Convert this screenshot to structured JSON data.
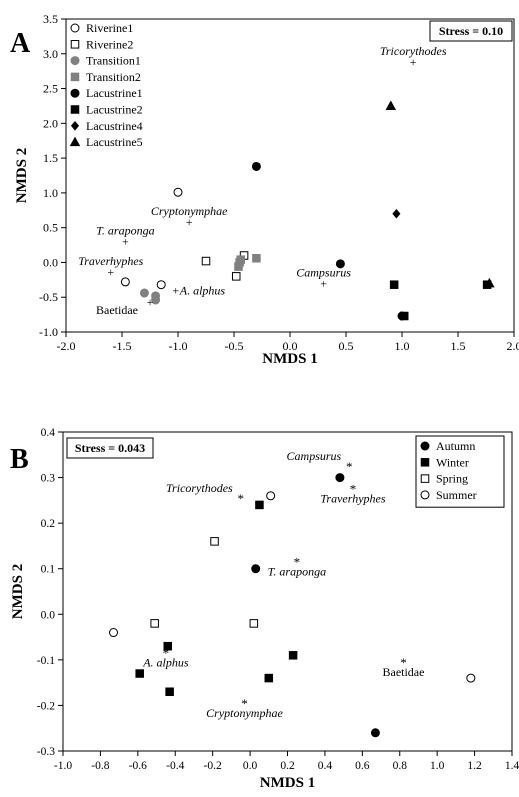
{
  "chart_data": [
    {
      "type": "scatter",
      "panel_label": "A",
      "xlabel": "NMDS 1",
      "ylabel": "NMDS 2",
      "xlim": [
        -2.0,
        2.0
      ],
      "ylim": [
        -1.0,
        3.5
      ],
      "xticks": [
        "-2.0",
        "-1.5",
        "-1.0",
        "-0.5",
        "0.0",
        "0.5",
        "1.0",
        "1.5",
        "2.0"
      ],
      "yticks": [
        "-1.0",
        "-0.5",
        "0.0",
        "0.5",
        "1.0",
        "1.5",
        "2.0",
        "2.5",
        "3.0",
        "3.5"
      ],
      "grid": false,
      "legend_position": "top-left",
      "stress_label": "Stress = 0.10",
      "series": [
        {
          "name": "Riverine1",
          "marker": "circle-open",
          "color": "#000000",
          "points": [
            [
              -1.47,
              -0.28
            ],
            [
              -1.15,
              -0.32
            ],
            [
              -1.0,
              1.01
            ]
          ]
        },
        {
          "name": "Riverine2",
          "marker": "square-open",
          "color": "#000000",
          "points": [
            [
              -0.75,
              0.02
            ],
            [
              -0.48,
              -0.2
            ],
            [
              -0.41,
              0.1
            ]
          ]
        },
        {
          "name": "Transition1",
          "marker": "circle",
          "color": "#808080",
          "points": [
            [
              -1.3,
              -0.44
            ],
            [
              -1.2,
              -0.48
            ],
            [
              -1.2,
              -0.54
            ]
          ]
        },
        {
          "name": "Transition2",
          "marker": "square",
          "color": "#808080",
          "points": [
            [
              -0.46,
              -0.06
            ],
            [
              -0.45,
              0.0
            ],
            [
              -0.44,
              0.04
            ],
            [
              -0.3,
              0.06
            ]
          ]
        },
        {
          "name": "Lacustrine1",
          "marker": "circle",
          "color": "#000000",
          "points": [
            [
              -0.3,
              1.38
            ],
            [
              0.45,
              -0.02
            ],
            [
              1.0,
              -0.77
            ]
          ]
        },
        {
          "name": "Lacustrine2",
          "marker": "square",
          "color": "#000000",
          "points": [
            [
              0.93,
              -0.32
            ],
            [
              1.02,
              -0.77
            ],
            [
              1.76,
              -0.32
            ]
          ]
        },
        {
          "name": "Lacustrine4",
          "marker": "diamond",
          "color": "#000000",
          "points": [
            [
              0.95,
              0.7
            ]
          ]
        },
        {
          "name": "Lacustrine5",
          "marker": "triangle",
          "color": "#000000",
          "points": [
            [
              0.9,
              2.25
            ],
            [
              1.78,
              -0.3
            ]
          ]
        }
      ],
      "species": [
        {
          "label": "Tricorythodes",
          "x": 1.1,
          "y": 2.88,
          "italic": true,
          "anchor": "above"
        },
        {
          "label": "Cryptonymphae",
          "x": -0.9,
          "y": 0.58,
          "italic": true,
          "anchor": "above"
        },
        {
          "label": "T. araponga",
          "x": -1.47,
          "y": 0.3,
          "italic": true,
          "anchor": "above"
        },
        {
          "label": "Traverhyphes",
          "x": -1.6,
          "y": -0.14,
          "italic": true,
          "anchor": "above"
        },
        {
          "label": "A. alphus",
          "x": -1.02,
          "y": -0.4,
          "italic": true,
          "anchor": "right"
        },
        {
          "label": "Campsurus",
          "x": 0.3,
          "y": -0.3,
          "italic": true,
          "anchor": "above"
        },
        {
          "label": "Baetidae",
          "x": -1.25,
          "y": -0.57,
          "italic": false,
          "anchor": "below-left"
        }
      ]
    },
    {
      "type": "scatter",
      "panel_label": "B",
      "xlabel": "NMDS 1",
      "ylabel": "NMDS 2",
      "xlim": [
        -1.0,
        1.4
      ],
      "ylim": [
        -0.3,
        0.4
      ],
      "xticks": [
        "-1.0",
        "-0.8",
        "-0.6",
        "-0.4",
        "-0.2",
        "0.0",
        "0.2",
        "0.4",
        "0.6",
        "0.8",
        "1.0",
        "1.2",
        "1.4"
      ],
      "yticks": [
        "-0.3",
        "-0.2",
        "-0.1",
        "0.0",
        "0.1",
        "0.2",
        "0.3",
        "0.4"
      ],
      "grid": false,
      "legend_position": "top-right",
      "stress_label": "Stress = 0.043",
      "series": [
        {
          "name": "Autumn",
          "marker": "circle",
          "color": "#000000",
          "points": [
            [
              0.03,
              0.1
            ],
            [
              0.48,
              0.3
            ],
            [
              0.67,
              -0.26
            ]
          ]
        },
        {
          "name": "Winter",
          "marker": "square",
          "color": "#000000",
          "points": [
            [
              0.05,
              0.24
            ],
            [
              -0.44,
              -0.07
            ],
            [
              -0.59,
              -0.13
            ],
            [
              -0.43,
              -0.17
            ],
            [
              0.1,
              -0.14
            ],
            [
              0.23,
              -0.09
            ]
          ]
        },
        {
          "name": "Spring",
          "marker": "square-open",
          "color": "#000000",
          "points": [
            [
              -0.19,
              0.16
            ],
            [
              -0.51,
              -0.02
            ],
            [
              0.02,
              -0.02
            ]
          ]
        },
        {
          "name": "Summer",
          "marker": "circle-open",
          "color": "#000000",
          "points": [
            [
              0.11,
              0.26
            ],
            [
              -0.73,
              -0.04
            ],
            [
              1.18,
              -0.14
            ]
          ]
        }
      ],
      "species": [
        {
          "label": "Campsurus",
          "x": 0.53,
          "y": 0.33,
          "italic": true,
          "anchor": "above-left"
        },
        {
          "label": "Traverhyphes",
          "x": 0.55,
          "y": 0.28,
          "italic": true,
          "anchor": "below"
        },
        {
          "label": "Tricorythodes",
          "x": -0.05,
          "y": 0.26,
          "italic": true,
          "anchor": "above-left"
        },
        {
          "label": "T. araponga",
          "x": 0.25,
          "y": 0.12,
          "italic": true,
          "anchor": "below"
        },
        {
          "label": "A. alphus",
          "x": -0.45,
          "y": -0.08,
          "italic": true,
          "anchor": "below"
        },
        {
          "label": "Cryptonymphae",
          "x": -0.03,
          "y": -0.19,
          "italic": true,
          "anchor": "below"
        },
        {
          "label": "Baetidae",
          "x": 0.82,
          "y": -0.1,
          "italic": false,
          "anchor": "below"
        }
      ]
    }
  ]
}
